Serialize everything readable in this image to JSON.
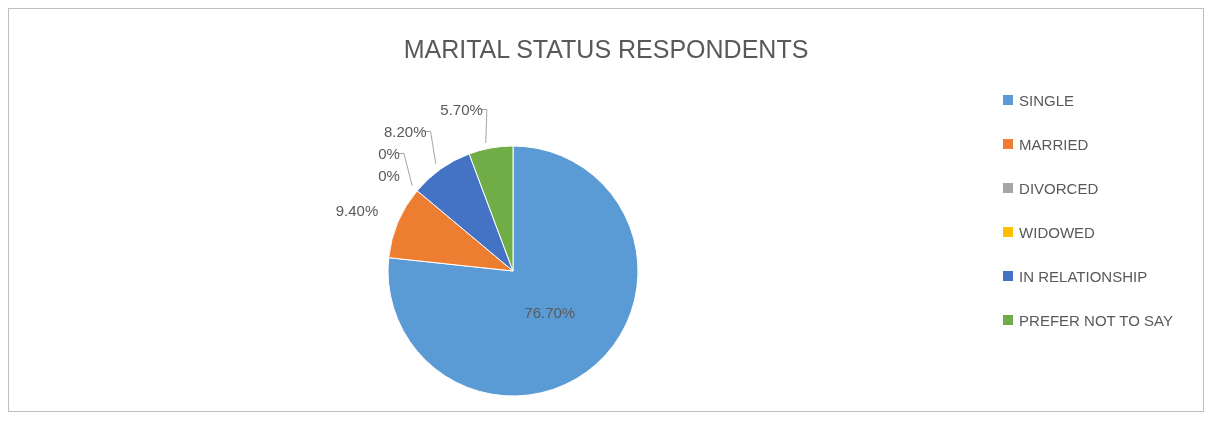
{
  "chart_data": {
    "type": "pie",
    "title": "MARITAL STATUS RESPONDENTS",
    "categories": [
      "SINGLE",
      "MARRIED",
      "DIVORCED",
      "WIDOWED",
      "IN RELATIONSHIP",
      "PREFER NOT TO SAY"
    ],
    "values": [
      76.7,
      9.4,
      0,
      0,
      8.2,
      5.7
    ],
    "value_labels": [
      "76.70%",
      "9.40%",
      "0%",
      "0%",
      "8.20%",
      "5.70%"
    ],
    "colors": [
      "#5b9bd5",
      "#ed7d31",
      "#a5a5a5",
      "#ffc000",
      "#4472c4",
      "#70ad47"
    ],
    "legend": "right"
  }
}
